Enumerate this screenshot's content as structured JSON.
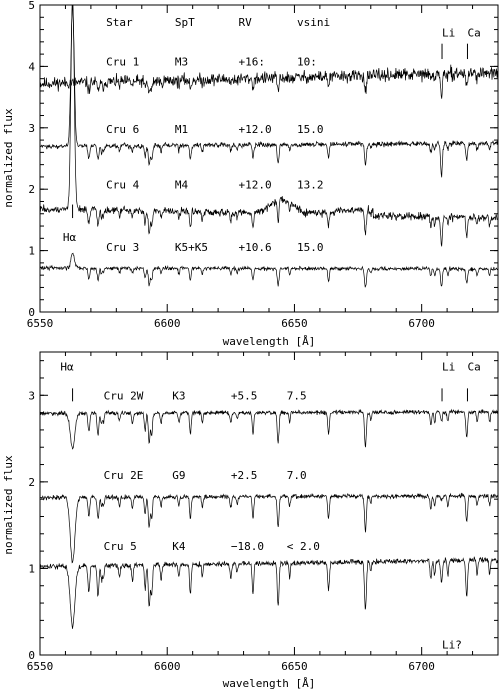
{
  "chart_data": [
    {
      "type": "line",
      "panel": "top",
      "xlabel": "wavelength [Å]",
      "ylabel": "normalized flux",
      "xlim": [
        6550,
        6730
      ],
      "ylim": [
        0,
        5
      ],
      "xticks": [
        "6550",
        "6600",
        "6650",
        "6700"
      ],
      "xtick_values": [
        6550,
        6600,
        6650,
        6700
      ],
      "yticks": [
        "0",
        "1",
        "2",
        "3",
        "4",
        "5"
      ],
      "ytick_values": [
        0,
        1,
        2,
        3,
        4,
        5
      ],
      "headers": [
        {
          "text": "Star",
          "x": 6576
        },
        {
          "text": "SpT",
          "x": 6603
        },
        {
          "text": "RV",
          "x": 6628
        },
        {
          "text": "vsini",
          "x": 6651
        }
      ],
      "line_labels": [
        {
          "text": "Li",
          "x": 6708,
          "y": 4.55,
          "mark_x": 6708,
          "mark_y": [
            4.12,
            4.37
          ]
        },
        {
          "text": "Ca",
          "x": 6718,
          "y": 4.55,
          "mark_x": 6718,
          "mark_y": [
            4.12,
            4.37
          ]
        },
        {
          "text": "Hα",
          "x": 6559,
          "y": 1.22,
          "mark_x": 6562.8,
          "mark_y": [
            1.53,
            1.75
          ]
        }
      ],
      "series": [
        {
          "star": "Cru 1",
          "spt": "M3",
          "rv": "+16:",
          "vsini": "10:",
          "label_y": 4.08,
          "baseline": 3.72,
          "slope": 0.18,
          "noise": 0.05,
          "line_scale": 0.6,
          "halpha": 0,
          "li": 0.35,
          "broad": 0
        },
        {
          "star": "Cru 6",
          "spt": "M1",
          "rv": "+12.0",
          "vsini": "15.0",
          "label_y": 2.98,
          "baseline": 2.7,
          "slope": 0.05,
          "noise": 0.02,
          "line_scale": 0.9,
          "halpha": 2.3,
          "li": 0.55,
          "broad": 0
        },
        {
          "star": "Cru 4",
          "spt": "M4",
          "rv": "+12.0",
          "vsini": "13.2",
          "label_y": 2.08,
          "baseline": 1.68,
          "slope": -0.15,
          "noise": 0.03,
          "line_scale": 1.0,
          "halpha": 3.5,
          "li": 0.5,
          "broad": 0.35
        },
        {
          "star": "Cru 3",
          "spt": "K5+K5",
          "rv": "+10.6",
          "vsini": "15.0",
          "label_y": 1.06,
          "baseline": 0.72,
          "slope": -0.02,
          "noise": 0.015,
          "line_scale": 0.8,
          "halpha": 0.25,
          "li": 0.3,
          "broad": 0
        }
      ]
    },
    {
      "type": "line",
      "panel": "bottom",
      "xlabel": "wavelength [Å]",
      "ylabel": "normalized flux",
      "xlim": [
        6550,
        6730
      ],
      "ylim": [
        0,
        3.5
      ],
      "xticks": [
        "6550",
        "6600",
        "6650",
        "6700"
      ],
      "xtick_values": [
        6550,
        6600,
        6650,
        6700
      ],
      "yticks": [
        "0",
        "1",
        "2",
        "3"
      ],
      "ytick_values": [
        0,
        1,
        2,
        3
      ],
      "line_labels": [
        {
          "text": "Hα",
          "x": 6558,
          "y": 3.33,
          "mark_x": 6562.8,
          "mark_y": [
            2.93,
            3.08
          ]
        },
        {
          "text": "Li",
          "x": 6708,
          "y": 3.33,
          "mark_x": 6708,
          "mark_y": [
            2.93,
            3.08
          ]
        },
        {
          "text": "Ca",
          "x": 6718,
          "y": 3.33,
          "mark_x": 6718,
          "mark_y": [
            2.93,
            3.08
          ]
        },
        {
          "text": "Li?",
          "x": 6708,
          "y": 0.12,
          "mark_x": 6708,
          "mark_y": [
            0.25,
            0.25
          ]
        }
      ],
      "series": [
        {
          "star": "Cru 2W",
          "spt": "K3",
          "rv": "+5.5",
          "vsini": "7.5",
          "label_y": 3.0,
          "baseline": 2.79,
          "slope": 0.02,
          "noise": 0.012,
          "line_scale": 1.0,
          "halpha": -0.4,
          "li": 0.1,
          "broad": 0
        },
        {
          "star": "Cru 2E",
          "spt": "G9",
          "rv": "+2.5",
          "vsini": "7.0",
          "label_y": 2.08,
          "baseline": 1.82,
          "slope": 0.02,
          "noise": 0.012,
          "line_scale": 1.0,
          "halpha": -0.75,
          "li": 0.05,
          "broad": 0
        },
        {
          "star": "Cru 5",
          "spt": "K4",
          "rv": "−18.0",
          "vsini": "< 2.0",
          "label_y": 1.26,
          "baseline": 1.02,
          "slope": 0.08,
          "noise": 0.015,
          "line_scale": 1.4,
          "halpha": -0.7,
          "li": 0.25,
          "broad": 0
        }
      ]
    }
  ]
}
